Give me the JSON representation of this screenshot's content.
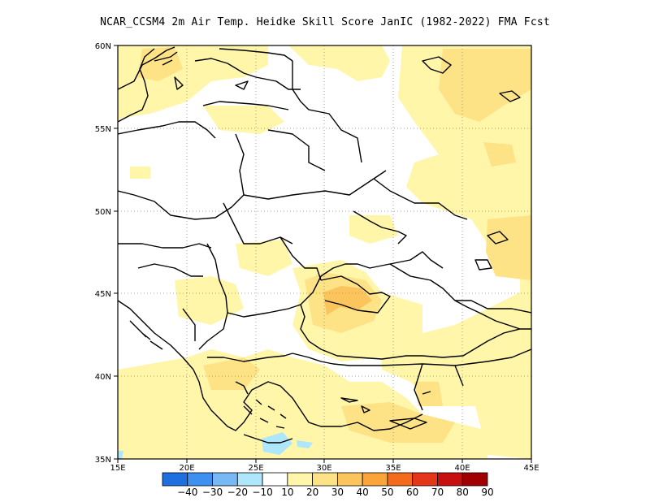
{
  "title": "NCAR_CCSM4  2m Air Temp. Heidke Skill Score JanIC (1982-2022) FMA Fcst",
  "map": {
    "lon_range": [
      15,
      45
    ],
    "lat_range": [
      35,
      60
    ],
    "x_ticks": [
      "15E",
      "20E",
      "25E",
      "30E",
      "35E",
      "40E",
      "45E"
    ],
    "y_ticks": [
      "60N",
      "55N",
      "50N",
      "45N",
      "40N",
      "35N"
    ],
    "gridlines": "dotted",
    "base_fill": "#ffffff",
    "coastline_color": "#000000"
  },
  "colorbar": {
    "labels": [
      "-40",
      "-30",
      "-20",
      "-10",
      "10",
      "20",
      "30",
      "40",
      "50",
      "60",
      "70",
      "80",
      "90"
    ],
    "colors": [
      "#1f6fe0",
      "#3d8ff0",
      "#78b8f5",
      "#aee6fb",
      "#ffffff",
      "#fff6aa",
      "#fde286",
      "#fcc45c",
      "#fba43a",
      "#f56b1e",
      "#e5361a",
      "#c80f0f",
      "#a00000"
    ]
  },
  "regions": {
    "light_yellow": "HSS 10-20 across northern Scandinavia/Baltic, Russia east of 35E, Turkey, Aegean and Balkans",
    "orange": "HSS 30-40 over the western Black Sea and Crimea",
    "light_blue": "HSS -20 to -10 south of Crete/Aegean"
  }
}
